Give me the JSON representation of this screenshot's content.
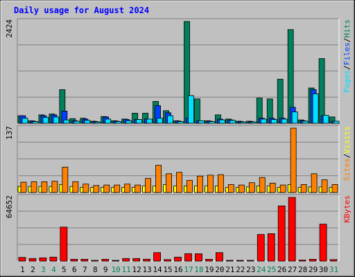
{
  "title": "Daily usage for August 2024",
  "colors": {
    "hits": "#00805c",
    "files": "#0040ff",
    "pages": "#00e0ff",
    "visits": "#ffff00",
    "sites": "#ff8000",
    "kbytes": "#ff0000",
    "title": "#0000ff",
    "weekend_day": "#00805c",
    "weekday_day": "#000000"
  },
  "chart_data": [
    {
      "type": "bar",
      "panel": "hits-files-pages",
      "axis_max_label": "2424",
      "ylim": [
        0,
        2424
      ],
      "legend": [
        "Pages",
        "Files",
        "Hits"
      ],
      "categories": [
        "1",
        "2",
        "3",
        "4",
        "5",
        "6",
        "7",
        "8",
        "9",
        "10",
        "11",
        "12",
        "13",
        "14",
        "15",
        "16",
        "17",
        "18",
        "19",
        "20",
        "21",
        "22",
        "23",
        "24",
        "25",
        "26",
        "27",
        "28",
        "29",
        "30",
        "31"
      ],
      "series": [
        {
          "name": "Hits",
          "values": [
            180,
            60,
            200,
            220,
            800,
            110,
            120,
            50,
            160,
            60,
            100,
            240,
            240,
            520,
            300,
            60,
            2424,
            580,
            60,
            200,
            100,
            50,
            50,
            600,
            580,
            1050,
            2230,
            80,
            840,
            1540,
            150
          ]
        },
        {
          "name": "Files",
          "values": [
            180,
            50,
            180,
            200,
            290,
            60,
            100,
            40,
            150,
            50,
            90,
            90,
            100,
            420,
            250,
            50,
            120,
            60,
            50,
            100,
            80,
            40,
            40,
            120,
            120,
            120,
            380,
            60,
            800,
            180,
            50
          ]
        },
        {
          "name": "Pages",
          "values": [
            120,
            40,
            140,
            150,
            80,
            50,
            70,
            30,
            100,
            40,
            60,
            90,
            100,
            120,
            180,
            40,
            660,
            60,
            40,
            80,
            70,
            30,
            30,
            100,
            90,
            100,
            270,
            50,
            700,
            190,
            50
          ]
        }
      ]
    },
    {
      "type": "bar",
      "panel": "visits-sites",
      "axis_max_label": "137",
      "ylim": [
        0,
        137
      ],
      "legend": [
        "Sites",
        "Visits"
      ],
      "categories": [
        "1",
        "2",
        "3",
        "4",
        "5",
        "6",
        "7",
        "8",
        "9",
        "10",
        "11",
        "12",
        "13",
        "14",
        "15",
        "16",
        "17",
        "18",
        "19",
        "20",
        "21",
        "22",
        "23",
        "24",
        "25",
        "26",
        "27",
        "28",
        "29",
        "30",
        "31"
      ],
      "series": [
        {
          "name": "Visits",
          "values": [
            13,
            13,
            13,
            13,
            17,
            13,
            11,
            11,
            11,
            11,
            11,
            11,
            14,
            14,
            17,
            14,
            14,
            14,
            14,
            14,
            11,
            11,
            12,
            14,
            14,
            11,
            17,
            11,
            12,
            12,
            11
          ]
        },
        {
          "name": "Sites",
          "values": [
            22,
            23,
            23,
            24,
            54,
            23,
            18,
            15,
            16,
            16,
            18,
            16,
            30,
            58,
            40,
            43,
            26,
            35,
            37,
            38,
            17,
            16,
            21,
            32,
            20,
            16,
            137,
            17,
            40,
            27,
            17
          ]
        }
      ]
    },
    {
      "type": "bar",
      "panel": "kbytes",
      "axis_max_label": "64652",
      "ylim": [
        0,
        64652
      ],
      "legend": [
        "KBytes"
      ],
      "categories": [
        "1",
        "2",
        "3",
        "4",
        "5",
        "6",
        "7",
        "8",
        "9",
        "10",
        "11",
        "12",
        "13",
        "14",
        "15",
        "16",
        "17",
        "18",
        "19",
        "20",
        "21",
        "22",
        "23",
        "24",
        "25",
        "26",
        "27",
        "28",
        "29",
        "30",
        "31"
      ],
      "series": [
        {
          "name": "KBytes",
          "values": [
            3700,
            2600,
            3300,
            4000,
            34500,
            1800,
            1800,
            600,
            1800,
            600,
            2600,
            2600,
            1900,
            8600,
            1500,
            4000,
            7500,
            7400,
            1800,
            8600,
            600,
            600,
            500,
            27000,
            27800,
            56000,
            64652,
            1000,
            1800,
            37500,
            1500
          ]
        }
      ]
    }
  ],
  "x_axis": {
    "labels": [
      "1",
      "2",
      "3",
      "4",
      "5",
      "6",
      "7",
      "8",
      "9",
      "10",
      "11",
      "12",
      "13",
      "14",
      "15",
      "16",
      "17",
      "18",
      "19",
      "20",
      "21",
      "22",
      "23",
      "24",
      "25",
      "26",
      "27",
      "28",
      "29",
      "30",
      "31"
    ],
    "weekend_days": [
      "3",
      "4",
      "10",
      "11",
      "17",
      "18",
      "24",
      "25",
      "31"
    ]
  }
}
